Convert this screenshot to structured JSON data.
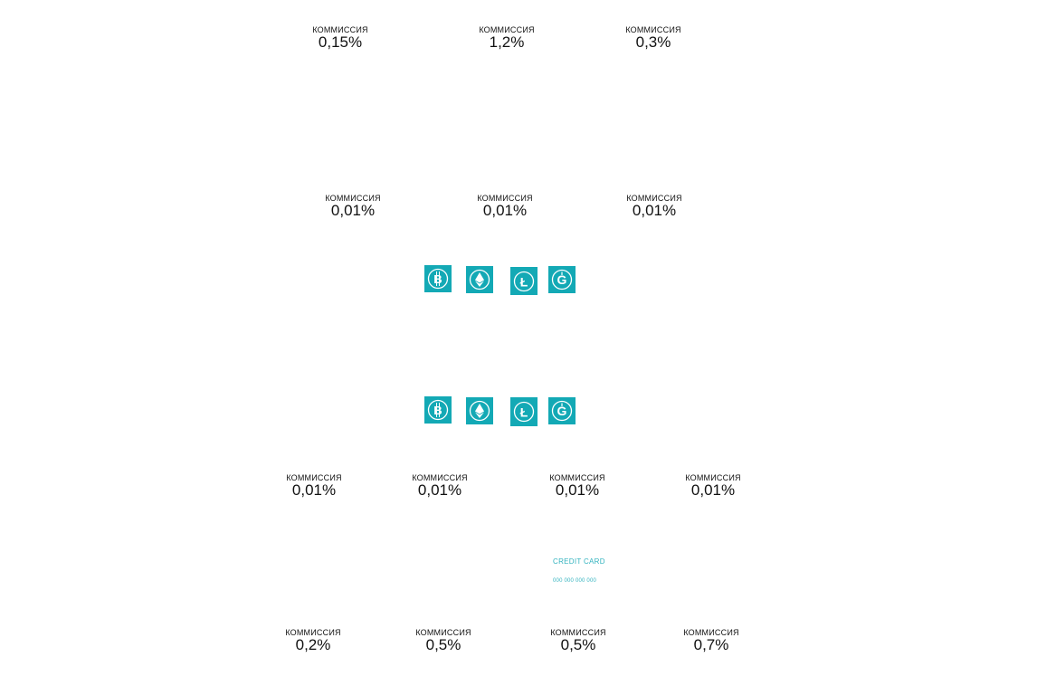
{
  "fee_label": "КОММИССИЯ",
  "accent_color": "#13a9b5",
  "fees": {
    "row1": [
      "0,15%",
      "1,2%",
      "0,3%"
    ],
    "row2": [
      "0,01%",
      "0,01%",
      "0,01%"
    ],
    "row3": [
      "0,01%",
      "0,01%",
      "0,01%",
      "0,01%"
    ],
    "row4": [
      "0,2%",
      "0,5%",
      "0,5%",
      "0,7%"
    ]
  },
  "coins": [
    "bitcoin-icon",
    "ethereum-icon",
    "litecoin-icon",
    "gold-coin-icon"
  ],
  "credit_card": {
    "title": "CREDIT CARD",
    "number": "000 000 000 000"
  }
}
